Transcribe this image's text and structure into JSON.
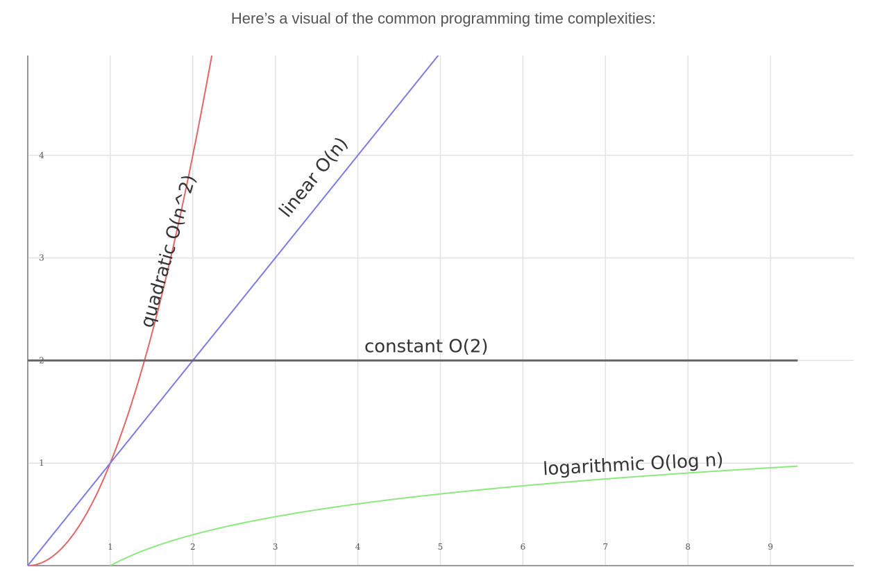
{
  "heading": "Here’s a visual of the common programming time complexities:",
  "chart_data": {
    "type": "line",
    "xlim": [
      0,
      9.33
    ],
    "ylim": [
      0,
      4.97
    ],
    "x_ticks": [
      1,
      2,
      3,
      4,
      5,
      6,
      7,
      8,
      9
    ],
    "y_ticks": [
      1,
      2,
      3,
      4
    ],
    "grid": true,
    "legend": "none",
    "series": [
      {
        "name": "quadratic O(n^2)",
        "formula": "n^2",
        "color": "#e06666",
        "x_range": [
          0,
          2.23
        ],
        "label_at": {
          "x": 1.77,
          "y": 3.05,
          "rotate": -74
        }
      },
      {
        "name": "linear O(n)",
        "formula": "n",
        "color": "#7b7be6",
        "x_range": [
          0,
          5.0
        ],
        "label_at": {
          "x": 3.52,
          "y": 3.75,
          "rotate": -51
        }
      },
      {
        "name": "constant O(2)",
        "formula": "2",
        "color": "#666666",
        "x_range": [
          0,
          9.33
        ],
        "label_at": {
          "x": 4.83,
          "y": 2.08,
          "rotate": 0
        }
      },
      {
        "name": "logarithmic O(log n)",
        "formula": "log10(n)",
        "color": "#8ee880",
        "x_range": [
          1,
          9.33
        ],
        "label_at": {
          "x": 7.34,
          "y": 0.93,
          "rotate": -3
        }
      }
    ]
  }
}
